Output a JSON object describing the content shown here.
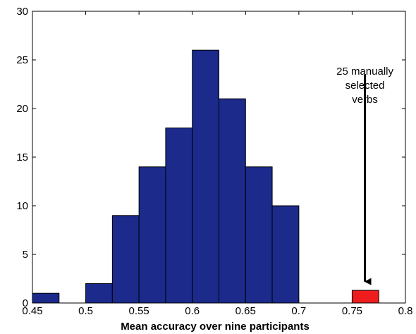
{
  "chart_data": {
    "type": "bar",
    "xlabel": "Mean accuracy over nine participants",
    "ylabel": "",
    "xlim": [
      0.45,
      0.8
    ],
    "ylim": [
      0,
      30
    ],
    "grid": false,
    "x_ticks": [
      "0.45",
      "0.5",
      "0.55",
      "0.6",
      "0.65",
      "0.7",
      "0.75",
      "0.8"
    ],
    "y_ticks": [
      "0",
      "5",
      "10",
      "15",
      "20",
      "25",
      "30"
    ],
    "bin_width": 0.025,
    "series": [
      {
        "color": "#1c2a8c",
        "bins": [
          {
            "x_start": 0.45,
            "x_end": 0.475,
            "count": 1
          },
          {
            "x_start": 0.475,
            "x_end": 0.5,
            "count": 0
          },
          {
            "x_start": 0.5,
            "x_end": 0.525,
            "count": 2
          },
          {
            "x_start": 0.525,
            "x_end": 0.55,
            "count": 9
          },
          {
            "x_start": 0.55,
            "x_end": 0.575,
            "count": 14
          },
          {
            "x_start": 0.575,
            "x_end": 0.6,
            "count": 18
          },
          {
            "x_start": 0.6,
            "x_end": 0.625,
            "count": 26
          },
          {
            "x_start": 0.625,
            "x_end": 0.65,
            "count": 21
          },
          {
            "x_start": 0.65,
            "x_end": 0.675,
            "count": 14
          },
          {
            "x_start": 0.675,
            "x_end": 0.7,
            "count": 10
          }
        ]
      },
      {
        "color": "#ee1c1c",
        "bins": [
          {
            "x_start": 0.75,
            "x_end": 0.775,
            "count": 1.3
          }
        ]
      }
    ],
    "annotation": {
      "lines": [
        "25 manually",
        "selected",
        "verbs"
      ],
      "arrow_from_y": 23.5,
      "arrow_to_y": 2.2,
      "arrow_x": 0.762
    }
  }
}
